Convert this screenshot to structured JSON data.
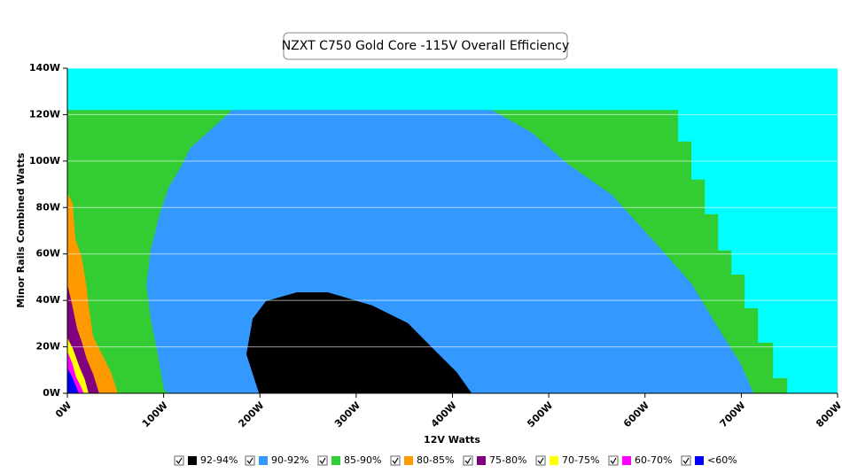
{
  "chart_data": {
    "type": "area",
    "title": "NZXT C750 Gold Core -115V Overall Efficiency",
    "x_label": "12V Watts",
    "y_label": "Minor Rails Combined Watts",
    "xlim": [
      0,
      800
    ],
    "ylim": [
      0,
      140
    ],
    "xticks": [
      {
        "value": 0,
        "label": "0W"
      },
      {
        "value": 100,
        "label": "100W"
      },
      {
        "value": 200,
        "label": "200W"
      },
      {
        "value": 300,
        "label": "300W"
      },
      {
        "value": 400,
        "label": "400W"
      },
      {
        "value": 500,
        "label": "500W"
      },
      {
        "value": 600,
        "label": "600W"
      },
      {
        "value": 700,
        "label": "700W"
      },
      {
        "value": 800,
        "label": "800W"
      }
    ],
    "yticks": [
      {
        "value": 0,
        "label": "0W"
      },
      {
        "value": 20,
        "label": "20W"
      },
      {
        "value": 40,
        "label": "40W"
      },
      {
        "value": 60,
        "label": "60W"
      },
      {
        "value": 80,
        "label": "80W"
      },
      {
        "value": 100,
        "label": "100W"
      },
      {
        "value": 120,
        "label": "120W"
      },
      {
        "value": 140,
        "label": "140W"
      }
    ],
    "grid": true,
    "plot_background": "#00ffff",
    "legend": "bottom",
    "series": [
      {
        "name": "92-94%",
        "color": "#000000",
        "x": [
          199,
          186,
          192.4,
          206.3,
          238.5,
          270.7,
          316.8,
          353.6,
          381.2,
          404.2,
          420
        ],
        "y": [
          0,
          16.8,
          32.1,
          39.7,
          43.5,
          43.5,
          37.8,
          30.2,
          18.7,
          9.2,
          0
        ]
      },
      {
        "name": "90-92%",
        "color": "#3399ff",
        "x": [
          105,
          100.4,
          93.9,
          86.6,
          82,
          86.6,
          95.8,
          105,
          118.8,
          128,
          155.6,
          171.3,
          441.1,
          482.5,
          519.3,
          565.4,
          611.4,
          648.2,
          675.9,
          698.9,
          712.7
        ],
        "y": [
          0,
          1.5,
          16.8,
          32.1,
          46.6,
          61.8,
          77.1,
          88.5,
          98.1,
          105.7,
          116,
          122,
          122,
          112.2,
          98.9,
          85.5,
          64.5,
          47.3,
          28.2,
          13,
          0
        ]
      },
      {
        "name": "85-90%",
        "color": "#33cc33",
        "x": [
          0,
          0,
          634.4,
          634.4,
          648.2,
          648.2,
          662.1,
          662.1,
          675.9,
          675.9,
          689.7,
          689.7,
          703.5,
          703.5,
          717.3,
          717.3,
          733,
          733,
          747.7,
          747.7
        ],
        "y": [
          0,
          122,
          122,
          108.4,
          108.4,
          92,
          92,
          77.1,
          77.1,
          61.5,
          61.5,
          51.1,
          51.1,
          36.6,
          36.6,
          21.8,
          21.8,
          6.5,
          6.5,
          0
        ]
      },
      {
        "name": "80-85%",
        "color": "#ff9900",
        "x": [
          0,
          0,
          5.5,
          8.3,
          14.7,
          19.3,
          22.1,
          26.7,
          35.9,
          45.1,
          52.5
        ],
        "y": [
          0,
          86.3,
          81.7,
          66.4,
          58.8,
          47.3,
          37.8,
          24.4,
          16.8,
          9.2,
          0
        ]
      },
      {
        "name": "75-80%",
        "color": "#800080",
        "x": [
          0,
          0,
          4,
          10,
          15,
          20,
          27,
          33
        ],
        "y": [
          0,
          47,
          40,
          28,
          22,
          15,
          8,
          0
        ]
      },
      {
        "name": "70-75%",
        "color": "#ffff00",
        "x": [
          0,
          0,
          6,
          12,
          18,
          22
        ],
        "y": [
          0,
          24,
          19,
          12,
          6,
          0
        ]
      },
      {
        "name": "60-70%",
        "color": "#ff00ff",
        "x": [
          0,
          0,
          5,
          9,
          14,
          17
        ],
        "y": [
          0,
          18,
          13,
          7,
          3,
          0
        ]
      },
      {
        "name": "<60%",
        "color": "#0000ff",
        "x": [
          0,
          0,
          5,
          9,
          12
        ],
        "y": [
          0,
          11,
          7,
          3,
          0
        ]
      }
    ]
  }
}
